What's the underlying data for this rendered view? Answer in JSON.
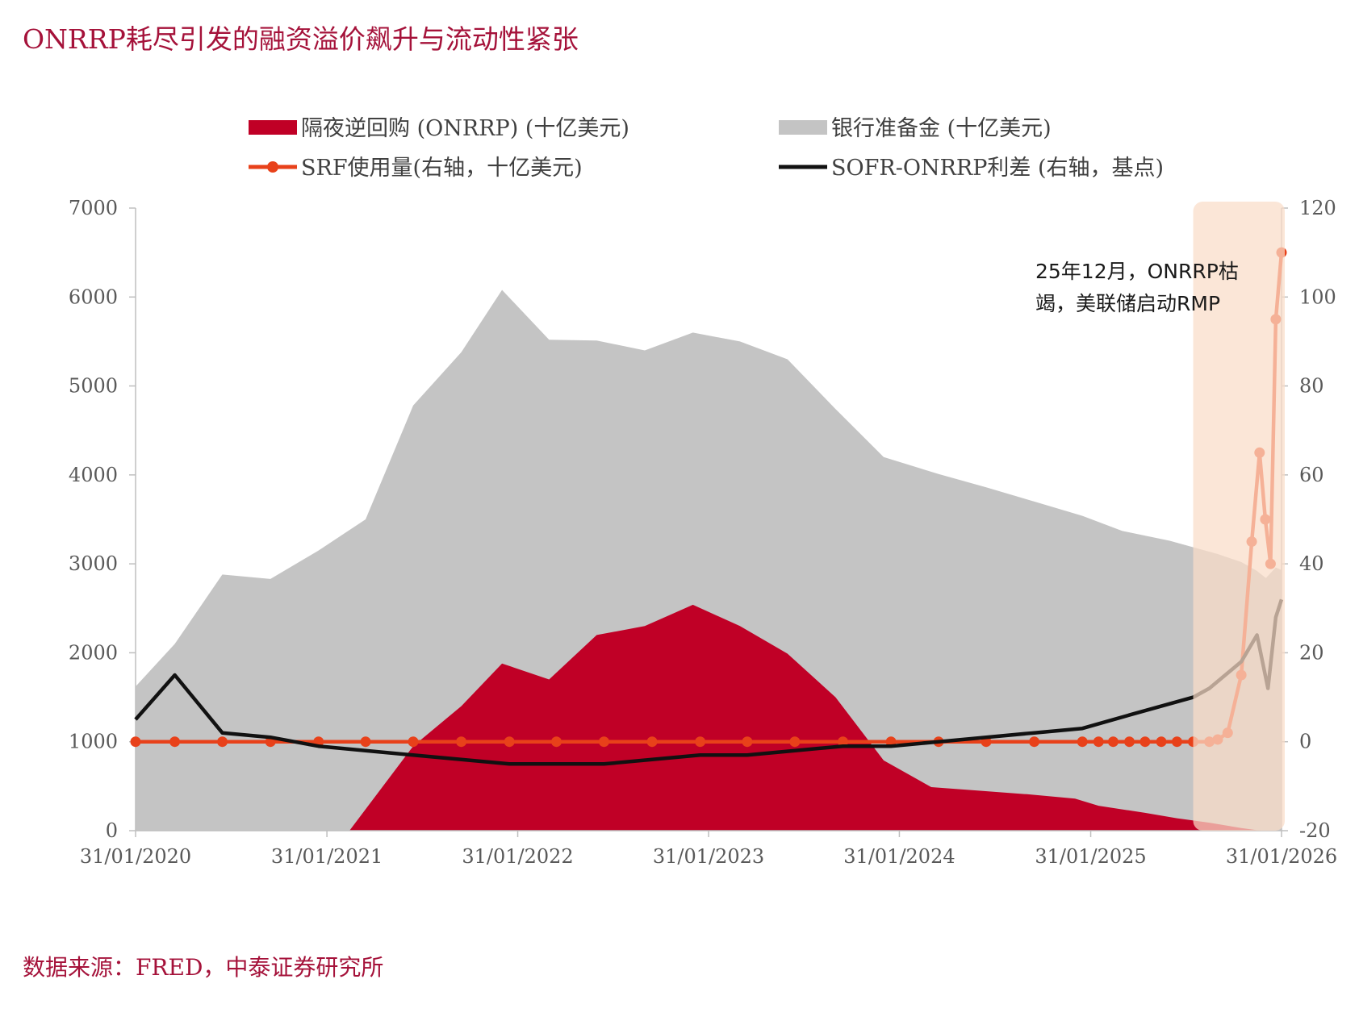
{
  "title": "ONRRP耗尽引发的融资溢价飙升与流动性紧张",
  "source": "数据来源：FRED，中泰证券研究所",
  "annotation": {
    "lines": [
      "25年12月，ONRRP枯",
      "竭，美联储启动RMP"
    ]
  },
  "chart_data": {
    "type": "area",
    "title": "ONRRP耗尽引发的融资溢价飙升与流动性紧张",
    "x_type": "date",
    "x_ticks": [
      "31/01/2020",
      "31/01/2021",
      "31/01/2022",
      "31/01/2023",
      "31/01/2024",
      "31/01/2025",
      "31/01/2026"
    ],
    "xlim": [
      "2020-01-31",
      "2026-01-31"
    ],
    "y_left": {
      "lim": [
        0,
        7000
      ],
      "ticks": [
        "0",
        "1000",
        "2000",
        "3000",
        "4000",
        "5000",
        "6000",
        "7000"
      ]
    },
    "y_right": {
      "lim": [
        -20,
        120
      ],
      "ticks": [
        "-20",
        "0",
        "20",
        "40",
        "60",
        "80",
        "100",
        "120"
      ]
    },
    "legend_position": "top",
    "highlight_range": [
      "2025-08-15",
      "2026-01-31"
    ],
    "highlight_color": "#f9dcc8",
    "series": [
      {
        "name": "银行准备金 (十亿美元)",
        "type": "area",
        "axis": "left",
        "color": "#c4c4c4",
        "points": [
          [
            "2020-01-31",
            1620
          ],
          [
            "2020-04-15",
            2100
          ],
          [
            "2020-07-15",
            2880
          ],
          [
            "2020-10-15",
            2830
          ],
          [
            "2021-01-15",
            3150
          ],
          [
            "2021-04-15",
            3500
          ],
          [
            "2021-07-15",
            4780
          ],
          [
            "2021-10-15",
            5380
          ],
          [
            "2022-01-01",
            6080
          ],
          [
            "2022-04-01",
            5520
          ],
          [
            "2022-07-01",
            5510
          ],
          [
            "2022-10-01",
            5400
          ],
          [
            "2023-01-01",
            5600
          ],
          [
            "2023-04-01",
            5500
          ],
          [
            "2023-07-01",
            5300
          ],
          [
            "2023-10-01",
            4740
          ],
          [
            "2024-01-01",
            4200
          ],
          [
            "2024-04-15",
            4010
          ],
          [
            "2024-07-15",
            3860
          ],
          [
            "2024-10-15",
            3700
          ],
          [
            "2025-01-15",
            3540
          ],
          [
            "2025-04-01",
            3370
          ],
          [
            "2025-07-01",
            3260
          ],
          [
            "2025-10-01",
            3110
          ],
          [
            "2025-11-15",
            3020
          ],
          [
            "2025-12-15",
            2920
          ],
          [
            "2026-01-01",
            2840
          ],
          [
            "2026-01-20",
            2960
          ],
          [
            "2026-01-31",
            2930
          ]
        ]
      },
      {
        "name": "隔夜逆回购 (ONRRP) (十亿美元)",
        "type": "area",
        "axis": "left",
        "color": "#c00026",
        "points": [
          [
            "2020-01-31",
            0
          ],
          [
            "2021-03-15",
            0
          ],
          [
            "2021-07-15",
            950
          ],
          [
            "2021-10-15",
            1400
          ],
          [
            "2022-01-01",
            1880
          ],
          [
            "2022-04-01",
            1700
          ],
          [
            "2022-07-01",
            2200
          ],
          [
            "2022-10-01",
            2300
          ],
          [
            "2023-01-01",
            2540
          ],
          [
            "2023-04-01",
            2300
          ],
          [
            "2023-07-01",
            1990
          ],
          [
            "2023-10-01",
            1500
          ],
          [
            "2024-01-01",
            790
          ],
          [
            "2024-04-01",
            490
          ],
          [
            "2024-07-01",
            450
          ],
          [
            "2024-10-01",
            410
          ],
          [
            "2025-01-01",
            360
          ],
          [
            "2025-02-15",
            280
          ],
          [
            "2025-05-15",
            200
          ],
          [
            "2025-07-15",
            140
          ],
          [
            "2025-09-15",
            90
          ],
          [
            "2025-11-15",
            30
          ],
          [
            "2025-12-15",
            5
          ],
          [
            "2026-01-31",
            0
          ]
        ]
      },
      {
        "name": "SRF使用量(右轴，十亿美元)",
        "type": "line",
        "axis": "right",
        "color": "#e8411a",
        "markers": true,
        "points": [
          [
            "2020-01-31",
            0
          ],
          [
            "2020-04-15",
            0
          ],
          [
            "2020-07-15",
            0
          ],
          [
            "2020-10-15",
            0
          ],
          [
            "2021-01-15",
            0
          ],
          [
            "2021-04-15",
            0
          ],
          [
            "2021-07-15",
            0
          ],
          [
            "2021-10-15",
            0
          ],
          [
            "2022-01-15",
            0
          ],
          [
            "2022-04-15",
            0
          ],
          [
            "2022-07-15",
            0
          ],
          [
            "2022-10-15",
            0
          ],
          [
            "2023-01-15",
            0
          ],
          [
            "2023-04-15",
            0
          ],
          [
            "2023-07-15",
            0
          ],
          [
            "2023-10-15",
            0
          ],
          [
            "2024-01-15",
            0
          ],
          [
            "2024-04-15",
            0
          ],
          [
            "2024-07-15",
            0
          ],
          [
            "2024-10-15",
            0
          ],
          [
            "2025-01-15",
            0
          ],
          [
            "2025-02-15",
            0
          ],
          [
            "2025-03-15",
            0
          ],
          [
            "2025-04-15",
            0
          ],
          [
            "2025-05-15",
            0
          ],
          [
            "2025-06-15",
            0
          ],
          [
            "2025-07-15",
            0
          ],
          [
            "2025-08-15",
            0
          ],
          [
            "2025-09-15",
            0
          ],
          [
            "2025-10-01",
            0.5
          ],
          [
            "2025-10-20",
            2
          ],
          [
            "2025-11-15",
            15
          ],
          [
            "2025-12-05",
            45
          ],
          [
            "2025-12-20",
            65
          ],
          [
            "2025-12-31",
            50
          ],
          [
            "2026-01-10",
            40
          ],
          [
            "2026-01-20",
            95
          ],
          [
            "2026-01-31",
            110
          ]
        ]
      },
      {
        "name": "SOFR-ONRRP利差 (右轴，基点)",
        "type": "line",
        "axis": "right",
        "color": "#111111",
        "markers": false,
        "points": [
          [
            "2020-01-31",
            5
          ],
          [
            "2020-04-15",
            15
          ],
          [
            "2020-07-15",
            2
          ],
          [
            "2020-10-15",
            1
          ],
          [
            "2021-01-15",
            -1
          ],
          [
            "2021-04-15",
            -2
          ],
          [
            "2021-07-15",
            -3
          ],
          [
            "2021-10-15",
            -4
          ],
          [
            "2022-01-15",
            -5
          ],
          [
            "2022-04-15",
            -5
          ],
          [
            "2022-07-15",
            -5
          ],
          [
            "2022-10-15",
            -4
          ],
          [
            "2023-01-15",
            -3
          ],
          [
            "2023-04-15",
            -3
          ],
          [
            "2023-07-15",
            -2
          ],
          [
            "2023-10-15",
            -1
          ],
          [
            "2024-01-15",
            -1
          ],
          [
            "2024-04-15",
            0
          ],
          [
            "2024-07-15",
            1
          ],
          [
            "2024-10-15",
            2
          ],
          [
            "2025-01-15",
            3
          ],
          [
            "2025-04-15",
            6
          ],
          [
            "2025-08-15",
            10
          ],
          [
            "2025-09-15",
            12
          ],
          [
            "2025-11-15",
            18
          ],
          [
            "2025-12-15",
            24
          ],
          [
            "2026-01-05",
            12
          ],
          [
            "2026-01-20",
            28
          ],
          [
            "2026-01-31",
            32
          ]
        ]
      }
    ]
  }
}
